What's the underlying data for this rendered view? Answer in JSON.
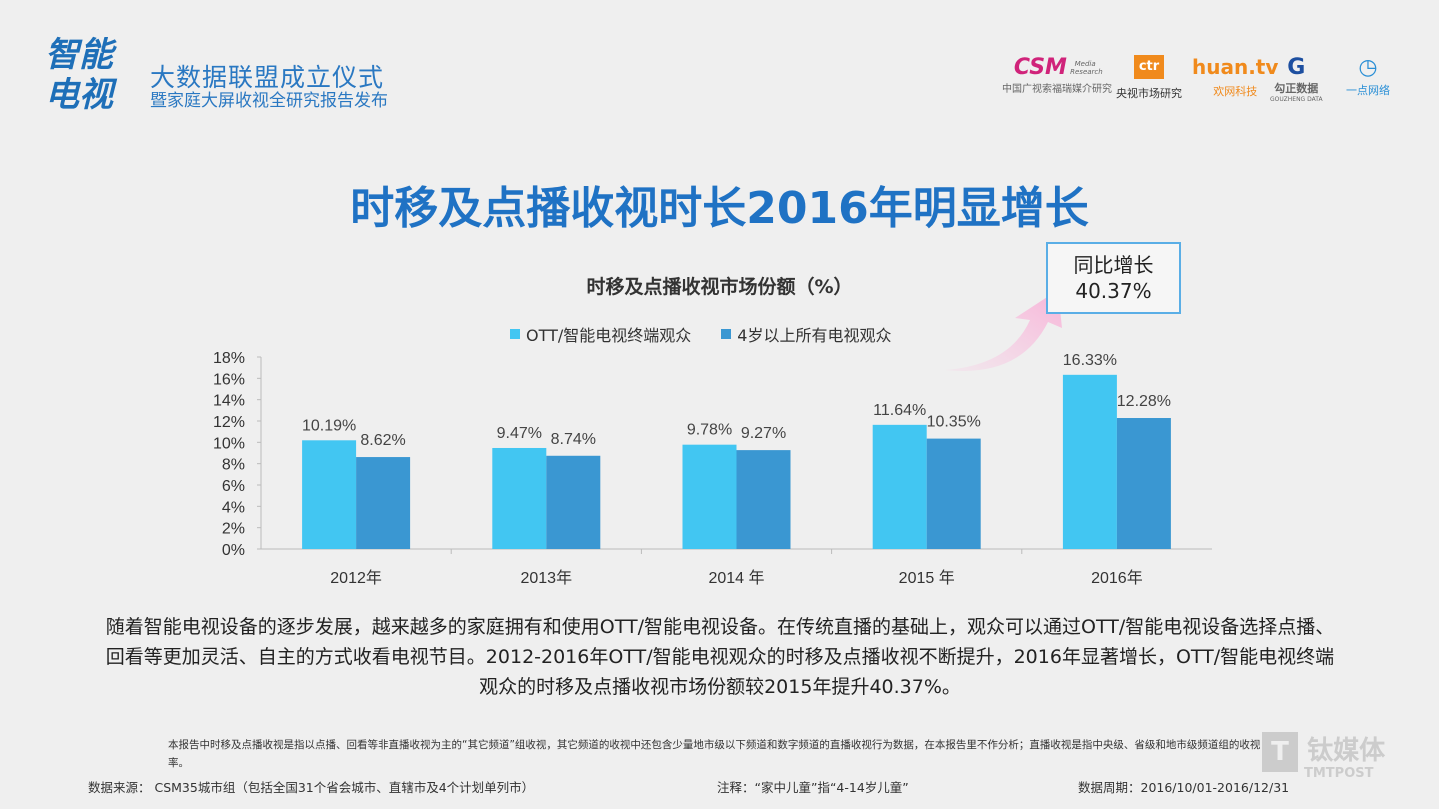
{
  "header": {
    "logo_text": "智能电视",
    "event_title": "大数据联盟成立仪式",
    "event_subtitle": "暨家庭大屏收视全研究报告发布",
    "partners": [
      {
        "mark": "CSM",
        "sub_mark": "Media Research",
        "caption": "中国广视索福瑞媒介研究",
        "color": "#d0237a"
      },
      {
        "mark": "ctr",
        "caption": "央视市场研究",
        "color": "#f08a1c"
      },
      {
        "mark": "huan.tv",
        "caption": "欢网科技",
        "color": "#f08a1c"
      },
      {
        "mark": "G",
        "caption": "勾正数据",
        "sub_caption": "GOUZHENG DATA",
        "color": "#1d4fa0"
      },
      {
        "mark": "◷",
        "caption": "一点网络",
        "color": "#2a8fd6"
      }
    ]
  },
  "main_title": "时移及点播收视时长2016年明显增长",
  "callout": {
    "line1": "同比增长",
    "line2": "40.37%"
  },
  "chart_data": {
    "type": "bar",
    "title": "时移及点播收视市场份额（%）",
    "categories": [
      "2012年",
      "2013年",
      "2014 年",
      "2015 年",
      "2016年"
    ],
    "series": [
      {
        "name": "OTT/智能电视终端观众",
        "values": [
          10.19,
          9.47,
          9.78,
          11.64,
          16.33
        ],
        "labels": [
          "10.19%",
          "9.47%",
          "9.78%",
          "11.64%",
          "16.33%"
        ],
        "color": "#42c6f2"
      },
      {
        "name": "4岁以上所有电视观众",
        "values": [
          8.62,
          8.74,
          9.27,
          10.35,
          12.28
        ],
        "labels": [
          "8.62%",
          "8.74%",
          "9.27%",
          "10.35%",
          "12.28%"
        ],
        "color": "#3a97d2"
      }
    ],
    "yticks": [
      "0%",
      "2%",
      "4%",
      "6%",
      "8%",
      "10%",
      "12%",
      "14%",
      "16%",
      "18%"
    ],
    "ylim": [
      0,
      18
    ],
    "grid": false,
    "legend": "top"
  },
  "description": "随着智能电视设备的逐步发展，越来越多的家庭拥有和使用OTT/智能电视设备。在传统直播的基础上，观众可以通过OTT/智能电视设备选择点播、回看等更加灵活、自主的方式收看电视节目。2012-2016年OTT/智能电视观众的时移及点播收视不断提升，2016年显著增长，OTT/智能电视终端观众的时移及点播收视市场份额较2015年提升40.37%。",
  "footnote": "本报告中时移及点播收视是指以点播、回看等非直播收视为主的“其它频道”组收视，其它频道的收视中还包含少量地市级以下频道和数字频道的直播收视行为数据，在本报告里不作分析；直播收视是指中央级、省级和地市级频道组的收视率。",
  "footer": {
    "source": "数据来源： CSM35城市组（包括全国31个省会城市、直辖市及4个计划单列市）",
    "note": "注释：“家中儿童”指“4-14岁儿童”",
    "period": "数据周期：2016/10/01-2016/12/31"
  },
  "watermark": {
    "cn": "钛媒体",
    "en": "TMTPOST"
  }
}
